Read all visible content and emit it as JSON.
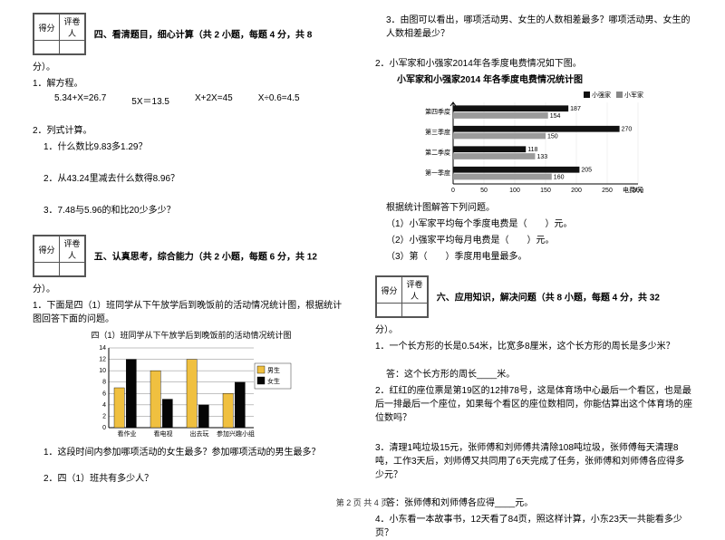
{
  "left": {
    "score_header": [
      "得分",
      "评卷人"
    ],
    "section4_title": "四、看清题目，细心计算（共 2 小题，每题 4 分，共 8",
    "section4_trail": "分）。",
    "q1_label": "1．解方程。",
    "eqs": [
      "5.34+X=26.7",
      "5X＝13.5",
      "X+2X=45",
      "X÷0.6=4.5"
    ],
    "q2_label": "2．列式计算。",
    "q2_1": "1．什么数比9.83多1.29？",
    "q2_2": "2．从43.24里减去什么数得8.96？",
    "q2_3": "3．7.48与5.96的和比20少多少？",
    "section5_title": "五、认真思考，综合能力（共 2 小题，每题 6 分，共 12",
    "section5_trail": "分）。",
    "sec5_q1a": "1．下面是四（1）班同学从下午放学后到晚饭前的活动情况统计图，根据统计图回答下面的问题。",
    "chart1": {
      "title": "四（1）班同学从下午放学后到晚饭前的活动情况统计图",
      "categories": [
        "看作业",
        "看电视",
        "出去玩",
        "参加兴趣小组"
      ],
      "series": [
        {
          "name": "男生",
          "color": "#f0c040",
          "values": [
            7,
            10,
            12,
            6
          ]
        },
        {
          "name": "女生",
          "color": "#050505",
          "values": [
            12,
            5,
            4,
            8
          ]
        }
      ],
      "y_ticks": [
        0,
        2,
        4,
        6,
        8,
        10,
        12,
        14
      ],
      "bg": "#ffffff",
      "grid": "#666",
      "axis": "#000",
      "label_fontsize": 7
    },
    "sec5_q1_1": "1．这段时间内参加哪项活动的女生最多？参加哪项活动的男生最多？",
    "sec5_q1_2": "2．四（1）班共有多少人？"
  },
  "right": {
    "top_q3": "3．由图可以看出，哪项活动男、女生的人数相差最多？哪项活动男、女生的人数相差最少？",
    "sec5_q2_intro": "2．小军家和小强家2014年各季度电费情况如下图。",
    "chart2": {
      "title": "小军家和小强家2014 年各季度电费情况统计图",
      "legend": [
        {
          "name": "小强家",
          "shape": "■",
          "color": "#111"
        },
        {
          "name": "小军家",
          "shape": "■",
          "color": "#888"
        }
      ],
      "categories": [
        "第四季度",
        "第三季度",
        "第二季度",
        "第一季度"
      ],
      "series": [
        {
          "name": "小强家",
          "color": "#111",
          "values": [
            187,
            270,
            118,
            205
          ]
        },
        {
          "name": "小军家",
          "color": "#9b9b9b",
          "values": [
            154,
            150,
            133,
            160
          ]
        }
      ],
      "x_ticks": [
        0,
        50,
        100,
        150,
        200,
        250,
        300
      ],
      "xlabel": "电费/元",
      "value_labels": [
        [
          187,
          154
        ],
        [
          270,
          150
        ],
        [
          118,
          133
        ],
        [
          205,
          160
        ]
      ],
      "axis": "#000",
      "grid": "#aaa",
      "label_fontsize": 7
    },
    "chart2_sub": "根据统计图解答下列问题。",
    "chart2_q1": "（1）小军家平均每个季度电费是（　　）元。",
    "chart2_q2": "（2）小强家平均每月电费是（　　）元。",
    "chart2_q3": "（3）第（　　）季度用电量最多。",
    "score_header": [
      "得分",
      "评卷人"
    ],
    "section6_title": "六、应用知识，解决问题（共 8 小题，每题 4 分，共 32",
    "section6_trail": "分）。",
    "q1": "1．一个长方形的长是0.54米，比宽多8厘米，这个长方形的周长是多少米？",
    "ans1": "答：这个长方形的周长____米。",
    "q2": "2．红红的座位票是第19区的12排78号，这是体育场中心最后一个看区，也是最后一排最后一个座位，如果每个看区的座位数相同，你能估算出这个体育场的座位数吗？",
    "q3": "3．清理1吨垃圾15元，张师傅和刘师傅共清除108吨垃圾，张师傅每天清理8吨，工作3天后，刘师傅又共同用了6天完成了任务，张师傅和刘师傅各应得多少元？",
    "ans3": "答：张师傅和刘师傅各应得____元。",
    "q4": "4．小东看一本故事书，12天看了84页，照这样计算，小东23天一共能看多少页？"
  },
  "footer": "第 2 页 共 4 页"
}
